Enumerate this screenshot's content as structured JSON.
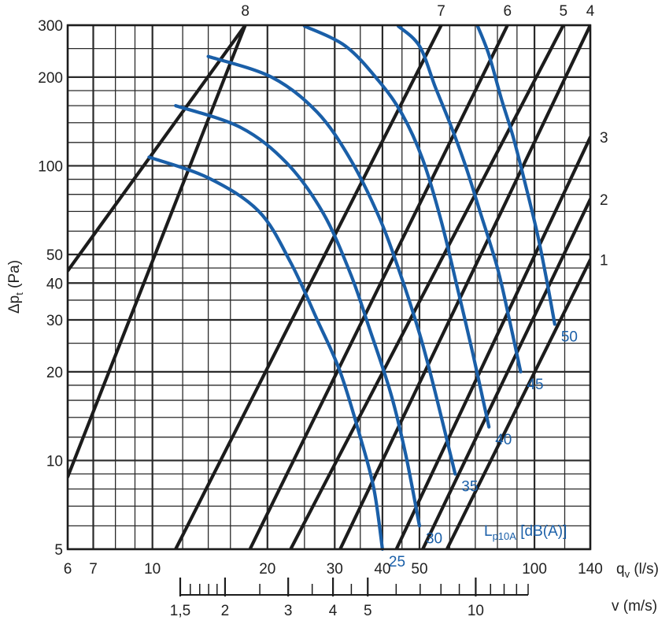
{
  "chart_data": {
    "type": "line",
    "x_axis": {
      "label_main": "q",
      "label_sub": "v",
      "label_unit": "(l/s)",
      "scale": "log",
      "range": [
        6,
        140
      ],
      "ticks": [
        {
          "v": 6,
          "t": "6"
        },
        {
          "v": 7,
          "t": "7"
        },
        {
          "v": 10,
          "t": "10"
        },
        {
          "v": 20,
          "t": "20"
        },
        {
          "v": 30,
          "t": "30"
        },
        {
          "v": 40,
          "t": "40"
        },
        {
          "v": 50,
          "t": "50"
        },
        {
          "v": 100,
          "t": "100"
        },
        {
          "v": 140,
          "t": "140"
        }
      ],
      "minor_gridlines": [
        6,
        7,
        8,
        9,
        10,
        12,
        14,
        16,
        20,
        25,
        30,
        35,
        40,
        45,
        50,
        60,
        70,
        80,
        90,
        100,
        120,
        140
      ]
    },
    "y_axis": {
      "label_main": "Δp",
      "label_sub": "t",
      "label_unit": "(Pa)",
      "scale": "log",
      "range": [
        5,
        300
      ],
      "ticks": [
        {
          "v": 5,
          "t": "5"
        },
        {
          "v": 10,
          "t": "10"
        },
        {
          "v": 20,
          "t": "20"
        },
        {
          "v": 30,
          "t": "30"
        },
        {
          "v": 40,
          "t": "40"
        },
        {
          "v": 50,
          "t": "50"
        },
        {
          "v": 100,
          "t": "100"
        },
        {
          "v": 200,
          "t": "200"
        },
        {
          "v": 300,
          "t": "300"
        }
      ],
      "minor_gridlines": [
        5,
        6,
        7,
        8,
        9,
        10,
        12,
        14,
        16,
        18,
        20,
        25,
        30,
        35,
        40,
        45,
        50,
        60,
        70,
        80,
        90,
        100,
        120,
        140,
        160,
        180,
        200,
        250,
        300
      ]
    },
    "secondary_x_axis": {
      "label_main": "v",
      "label_unit": "(m/s)",
      "scale": "log",
      "range": [
        1.5,
        14
      ],
      "ticks": [
        {
          "v": 1.5,
          "t": "1,5"
        },
        {
          "v": 2,
          "t": "2"
        },
        {
          "v": 3,
          "t": "3"
        },
        {
          "v": 4,
          "t": "4"
        },
        {
          "v": 5,
          "t": "5"
        },
        {
          "v": 10,
          "t": "10"
        }
      ],
      "minor_ticks": [
        1.6,
        1.7,
        1.8,
        1.9,
        2.5,
        3.5,
        4.5,
        6,
        7,
        8,
        9,
        11,
        12,
        13,
        14
      ]
    },
    "black_series": [
      {
        "name": "1",
        "points": [
          [
            59,
            5
          ],
          [
            140,
            48
          ]
        ]
      },
      {
        "name": "2",
        "points": [
          [
            51,
            5
          ],
          [
            140,
            77
          ]
        ]
      },
      {
        "name": "3",
        "points": [
          [
            43.5,
            5
          ],
          [
            140,
            125
          ]
        ]
      },
      {
        "name": "4",
        "points": [
          [
            31,
            5
          ],
          [
            140,
            300
          ]
        ]
      },
      {
        "name": "5",
        "points": [
          [
            23,
            5
          ],
          [
            119,
            300
          ]
        ]
      },
      {
        "name": "6",
        "points": [
          [
            18,
            5
          ],
          [
            85,
            300
          ]
        ]
      },
      {
        "name": "7",
        "points": [
          [
            11.5,
            5
          ],
          [
            57,
            300
          ]
        ]
      },
      {
        "name": "8",
        "points": [
          [
            6,
            8.8
          ],
          [
            17.5,
            300
          ]
        ]
      },
      {
        "name": "",
        "points": [
          [
            6,
            44
          ],
          [
            17.5,
            300
          ]
        ]
      }
    ],
    "blue_series": [
      {
        "name": "25",
        "points": [
          [
            9.8,
            107
          ],
          [
            14,
            91
          ],
          [
            19,
            70
          ],
          [
            23,
            47
          ],
          [
            27,
            30
          ],
          [
            31,
            20
          ],
          [
            35,
            12
          ],
          [
            38,
            8
          ],
          [
            40,
            5
          ]
        ]
      },
      {
        "name": "30",
        "points": [
          [
            11.5,
            160
          ],
          [
            17,
            135
          ],
          [
            22.5,
            102
          ],
          [
            28,
            69
          ],
          [
            33,
            43
          ],
          [
            37,
            28
          ],
          [
            42,
            17
          ],
          [
            46,
            10.5
          ],
          [
            50,
            6
          ]
        ]
      },
      {
        "name": "35",
        "points": [
          [
            14,
            235
          ],
          [
            20.5,
            200
          ],
          [
            27,
            152
          ],
          [
            33,
            105
          ],
          [
            39,
            68
          ],
          [
            44,
            45
          ],
          [
            50,
            27
          ],
          [
            55,
            17
          ],
          [
            62,
            9
          ]
        ]
      },
      {
        "name": "40",
        "points": [
          [
            25,
            298
          ],
          [
            32,
            255
          ],
          [
            39,
            195
          ],
          [
            45,
            150
          ],
          [
            51,
            105
          ],
          [
            57,
            65
          ],
          [
            63,
            38
          ],
          [
            69,
            23
          ],
          [
            76,
            13
          ]
        ]
      },
      {
        "name": "45",
        "points": [
          [
            44,
            298
          ],
          [
            50,
            255
          ],
          [
            55,
            185
          ],
          [
            60,
            140
          ],
          [
            66,
            100
          ],
          [
            72,
            70
          ],
          [
            80,
            45
          ],
          [
            86,
            30
          ],
          [
            92,
            20
          ]
        ]
      },
      {
        "name": "50",
        "points": [
          [
            71,
            298
          ],
          [
            76,
            238
          ],
          [
            82,
            168
          ],
          [
            88,
            125
          ],
          [
            95,
            85
          ],
          [
            102,
            58
          ],
          [
            108,
            40
          ],
          [
            113,
            29
          ]
        ]
      }
    ],
    "annotation": {
      "main": "L",
      "sub": "p10A",
      "rest": "[dB(A)]"
    },
    "colors": {
      "grid": "#2a2a2a",
      "black_line": "#1c1c1c",
      "blue_line": "#1a5fa8"
    }
  }
}
